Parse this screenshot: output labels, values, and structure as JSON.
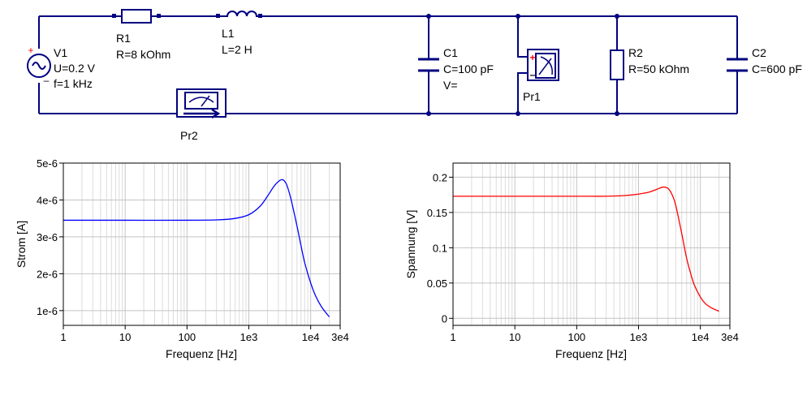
{
  "circuit": {
    "components": [
      {
        "id": "V1",
        "params": [
          "U=0.2 V",
          "f=1 kHz"
        ],
        "plus": "+",
        "minus": "–"
      },
      {
        "id": "R1",
        "params": [
          "R=8 kOhm"
        ]
      },
      {
        "id": "L1",
        "params": [
          "L=2 H"
        ]
      },
      {
        "id": "C1",
        "params": [
          "C=100 pF",
          "V="
        ]
      },
      {
        "id": "Pr1",
        "params": [],
        "plus": "+",
        "minus": "–"
      },
      {
        "id": "R2",
        "params": [
          "R=50 kOhm"
        ]
      },
      {
        "id": "C2",
        "params": [
          "C=600 pF"
        ]
      },
      {
        "id": "Pr2",
        "params": []
      }
    ],
    "colors": {
      "wire": "#000080",
      "plus": "#ff0000"
    }
  },
  "chart_data": [
    {
      "type": "line",
      "xlabel": "Frequenz [Hz]",
      "ylabel": "Strom [A]",
      "xscale": "log",
      "xlim": [
        1,
        30000
      ],
      "ylim": [
        6e-07,
        5e-06
      ],
      "xticks": [
        1,
        10,
        100,
        1000,
        10000,
        30000
      ],
      "xtick_labels": [
        "1",
        "10",
        "100",
        "1e3",
        "1e4",
        "3e4"
      ],
      "yticks": [
        1e-06,
        2e-06,
        3e-06,
        4e-06,
        5e-06
      ],
      "ytick_labels": [
        "1e-6",
        "2e-6",
        "3e-6",
        "4e-6",
        "5e-6"
      ],
      "grid": true,
      "series": [
        {
          "color": "#0000ff",
          "x": [
            1,
            10,
            100,
            300,
            600,
            1000,
            1500,
            2000,
            2500,
            3000,
            3500,
            4000,
            4500,
            5000,
            6000,
            7000,
            8000,
            10000,
            12000,
            15000,
            20000
          ],
          "y": [
            3.45e-06,
            3.45e-06,
            3.45e-06,
            3.46e-06,
            3.5e-06,
            3.6e-06,
            3.82e-06,
            4.1e-06,
            4.35e-06,
            4.5e-06,
            4.55e-06,
            4.45e-06,
            4.2e-06,
            3.9e-06,
            3.3e-06,
            2.75e-06,
            2.3e-06,
            1.75e-06,
            1.4e-06,
            1.1e-06,
            8.3e-07
          ]
        }
      ]
    },
    {
      "type": "line",
      "xlabel": "Frequenz [Hz]",
      "ylabel": "Spannung [V]",
      "xscale": "log",
      "xlim": [
        1,
        30000
      ],
      "ylim": [
        -0.01,
        0.22
      ],
      "xticks": [
        1,
        10,
        100,
        1000,
        10000,
        30000
      ],
      "xtick_labels": [
        "1",
        "10",
        "100",
        "1e3",
        "1e4",
        "3e4"
      ],
      "yticks": [
        0,
        0.05,
        0.1,
        0.15,
        0.2
      ],
      "ytick_labels": [
        "0",
        "0.05",
        "0.1",
        "0.15",
        "0.2"
      ],
      "grid": true,
      "series": [
        {
          "color": "#ff0000",
          "x": [
            1,
            10,
            100,
            300,
            600,
            1000,
            1500,
            2000,
            2500,
            3000,
            3500,
            4000,
            5000,
            6000,
            7000,
            8000,
            10000,
            12000,
            15000,
            20000
          ],
          "y": [
            0.173,
            0.173,
            0.173,
            0.173,
            0.174,
            0.176,
            0.179,
            0.183,
            0.186,
            0.184,
            0.175,
            0.16,
            0.12,
            0.085,
            0.063,
            0.047,
            0.03,
            0.021,
            0.015,
            0.01
          ]
        }
      ]
    }
  ]
}
